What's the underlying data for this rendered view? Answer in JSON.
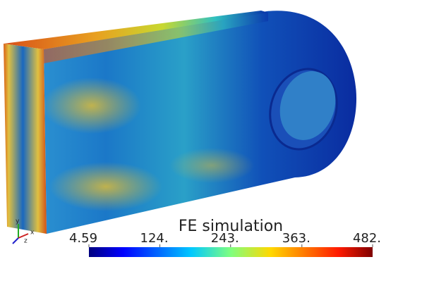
{
  "colorbar": {
    "title": "FE simulation",
    "range": [
      4.59,
      482
    ],
    "ticks": [
      4.59,
      {
        "value": 124,
        "label": "124."
      },
      {
        "value": 243,
        "label": "243."
      },
      {
        "value": 363,
        "label": "363."
      },
      {
        "value": 482,
        "label": "482."
      }
    ]
  },
  "axes_triad": {
    "labels": [
      "x",
      "y",
      "z"
    ]
  }
}
